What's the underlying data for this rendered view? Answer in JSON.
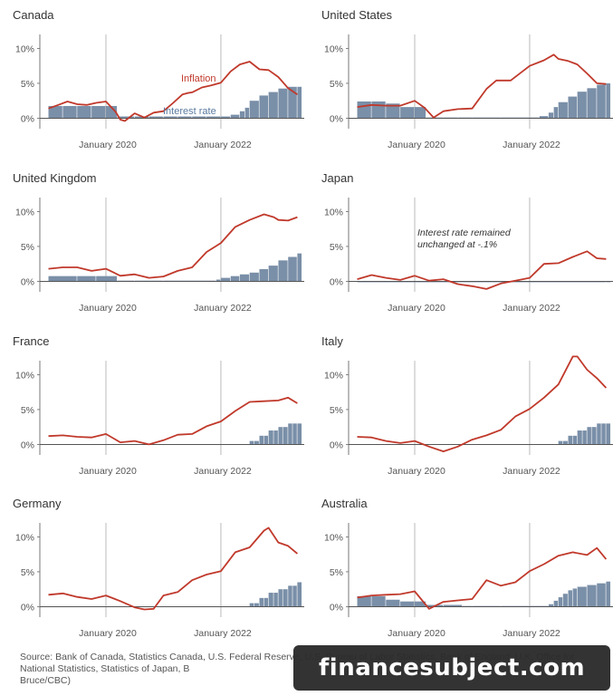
{
  "chart_data": [
    {
      "type": "line",
      "title": "Canada",
      "yticks": [
        "10%",
        "5%",
        "0%"
      ],
      "xticks": [
        "January 2020",
        "January 2022"
      ],
      "ylim": [
        -1.5,
        12
      ],
      "labels": {
        "inflation": "Inflation",
        "interest": "Interest rate"
      },
      "series": [
        {
          "name": "Inflation",
          "kind": "line",
          "color": "#c0392b",
          "x": [
            2019.0,
            2019.17,
            2019.33,
            2019.5,
            2019.67,
            2019.83,
            2020.0,
            2020.17,
            2020.25,
            2020.33,
            2020.5,
            2020.67,
            2020.83,
            2021.0,
            2021.17,
            2021.33,
            2021.42,
            2021.5,
            2021.67,
            2021.83,
            2022.0,
            2022.17,
            2022.33,
            2022.5,
            2022.67,
            2022.83,
            2023.0,
            2023.17,
            2023.33
          ],
          "values": [
            1.4,
            1.9,
            2.4,
            2.0,
            1.9,
            2.2,
            2.4,
            0.9,
            -0.2,
            -0.4,
            0.7,
            0.1,
            0.8,
            1.0,
            2.2,
            3.4,
            3.6,
            3.7,
            4.4,
            4.7,
            5.1,
            6.7,
            7.7,
            8.1,
            7.0,
            6.9,
            5.9,
            4.3,
            3.4
          ]
        },
        {
          "name": "Interest rate",
          "kind": "bar",
          "color": "#7a8fa8",
          "x": [
            2019.0,
            2019.25,
            2019.5,
            2019.75,
            2020.0,
            2020.2,
            2020.5,
            2020.75,
            2021.0,
            2021.25,
            2021.5,
            2021.75,
            2022.0,
            2022.17,
            2022.33,
            2022.42,
            2022.5,
            2022.67,
            2022.83,
            2023.0,
            2023.17,
            2023.33
          ],
          "values": [
            1.75,
            1.75,
            1.75,
            1.75,
            1.75,
            0.25,
            0.25,
            0.25,
            0.25,
            0.25,
            0.25,
            0.25,
            0.25,
            0.5,
            1.0,
            1.5,
            2.5,
            3.25,
            3.75,
            4.25,
            4.5,
            4.5
          ]
        }
      ]
    },
    {
      "type": "line",
      "title": "United States",
      "yticks": [
        "10%",
        "5%",
        "0%"
      ],
      "xticks": [
        "January 2020",
        "January 2022"
      ],
      "ylim": [
        -1.5,
        12
      ],
      "series": [
        {
          "name": "Inflation",
          "kind": "line",
          "color": "#c0392b",
          "x": [
            2019.0,
            2019.25,
            2019.5,
            2019.75,
            2020.0,
            2020.17,
            2020.33,
            2020.5,
            2020.75,
            2021.0,
            2021.25,
            2021.42,
            2021.67,
            2022.0,
            2022.25,
            2022.42,
            2022.5,
            2022.67,
            2022.83,
            2023.0,
            2023.17,
            2023.33
          ],
          "values": [
            1.6,
            1.9,
            1.8,
            1.8,
            2.5,
            1.5,
            0.1,
            1.0,
            1.3,
            1.4,
            4.2,
            5.4,
            5.4,
            7.5,
            8.3,
            9.1,
            8.5,
            8.2,
            7.7,
            6.4,
            5.0,
            4.9
          ]
        },
        {
          "name": "Interest rate",
          "kind": "bar",
          "color": "#7a8fa8",
          "x": [
            2019.0,
            2019.25,
            2019.5,
            2019.75,
            2020.0,
            2020.2,
            2020.5,
            2020.75,
            2021.0,
            2021.5,
            2022.0,
            2022.17,
            2022.33,
            2022.42,
            2022.5,
            2022.67,
            2022.83,
            2023.0,
            2023.17,
            2023.33
          ],
          "values": [
            2.4,
            2.4,
            2.1,
            1.6,
            1.6,
            0.1,
            0.1,
            0.1,
            0.1,
            0.1,
            0.1,
            0.3,
            0.8,
            1.6,
            2.3,
            3.1,
            3.8,
            4.3,
            4.8,
            5.0
          ]
        }
      ]
    },
    {
      "type": "line",
      "title": "United Kingdom",
      "yticks": [
        "10%",
        "5%",
        "0%"
      ],
      "xticks": [
        "January 2020",
        "January 2022"
      ],
      "ylim": [
        -1.5,
        12
      ],
      "series": [
        {
          "name": "Inflation",
          "kind": "line",
          "color": "#c0392b",
          "x": [
            2019.0,
            2019.25,
            2019.5,
            2019.75,
            2020.0,
            2020.25,
            2020.5,
            2020.75,
            2021.0,
            2021.25,
            2021.5,
            2021.75,
            2022.0,
            2022.25,
            2022.5,
            2022.75,
            2022.92,
            2023.0,
            2023.17,
            2023.33
          ],
          "values": [
            1.8,
            2.0,
            2.0,
            1.5,
            1.8,
            0.8,
            1.0,
            0.5,
            0.7,
            1.5,
            2.0,
            4.2,
            5.5,
            7.8,
            8.8,
            9.6,
            9.2,
            8.8,
            8.7,
            9.2
          ]
        },
        {
          "name": "Interest rate",
          "kind": "bar",
          "color": "#7a8fa8",
          "x": [
            2019.0,
            2019.5,
            2019.83,
            2020.2,
            2020.5,
            2021.0,
            2021.92,
            2022.0,
            2022.17,
            2022.33,
            2022.5,
            2022.67,
            2022.83,
            2023.0,
            2023.17,
            2023.33
          ],
          "values": [
            0.75,
            0.75,
            0.75,
            0.1,
            0.1,
            0.1,
            0.25,
            0.5,
            0.75,
            1.0,
            1.25,
            1.75,
            2.25,
            3.0,
            3.5,
            4.0
          ]
        }
      ]
    },
    {
      "type": "line",
      "title": "Japan",
      "yticks": [
        "10%",
        "5%",
        "0%"
      ],
      "xticks": [
        "January 2020",
        "January 2022"
      ],
      "ylim": [
        -1.5,
        12
      ],
      "annotation": "Interest rate remained unchanged at -.1%",
      "series": [
        {
          "name": "Inflation",
          "kind": "line",
          "color": "#c0392b",
          "x": [
            2019.0,
            2019.25,
            2019.5,
            2019.75,
            2020.0,
            2020.25,
            2020.5,
            2020.75,
            2021.0,
            2021.25,
            2021.5,
            2021.75,
            2022.0,
            2022.25,
            2022.5,
            2022.75,
            2023.0,
            2023.17,
            2023.33
          ],
          "values": [
            0.3,
            0.9,
            0.5,
            0.2,
            0.8,
            0.1,
            0.3,
            -0.4,
            -0.7,
            -1.1,
            -0.3,
            0.1,
            0.5,
            2.5,
            2.6,
            3.5,
            4.3,
            3.3,
            3.2
          ]
        },
        {
          "name": "Interest rate",
          "kind": "bar",
          "color": "#7a8fa8",
          "x": [
            2019.0,
            2023.33
          ],
          "values": [
            -0.1,
            -0.1
          ]
        }
      ]
    },
    {
      "type": "line",
      "title": "France",
      "yticks": [
        "10%",
        "5%",
        "0%"
      ],
      "xticks": [
        "January 2020",
        "January 2022"
      ],
      "ylim": [
        -1.5,
        12
      ],
      "series": [
        {
          "name": "Inflation",
          "kind": "line",
          "color": "#c0392b",
          "x": [
            2019.0,
            2019.25,
            2019.5,
            2019.75,
            2020.0,
            2020.25,
            2020.5,
            2020.75,
            2021.0,
            2021.25,
            2021.5,
            2021.75,
            2022.0,
            2022.25,
            2022.5,
            2022.75,
            2023.0,
            2023.17,
            2023.33
          ],
          "values": [
            1.2,
            1.3,
            1.1,
            1.0,
            1.5,
            0.3,
            0.5,
            0.0,
            0.6,
            1.4,
            1.5,
            2.6,
            3.3,
            4.8,
            6.1,
            6.2,
            6.3,
            6.7,
            5.9
          ]
        },
        {
          "name": "Interest rate",
          "kind": "bar",
          "color": "#7a8fa8",
          "x": [
            2022.5,
            2022.58,
            2022.67,
            2022.75,
            2022.83,
            2022.92,
            2023.0,
            2023.08,
            2023.17,
            2023.25,
            2023.33
          ],
          "values": [
            0.5,
            0.5,
            1.25,
            1.25,
            2.0,
            2.0,
            2.5,
            2.5,
            3.0,
            3.0,
            3.0
          ]
        }
      ]
    },
    {
      "type": "line",
      "title": "Italy",
      "yticks": [
        "10%",
        "5%",
        "0%"
      ],
      "xticks": [
        "January 2020",
        "January 2022"
      ],
      "ylim": [
        -1.5,
        12
      ],
      "series": [
        {
          "name": "Inflation",
          "kind": "line",
          "color": "#c0392b",
          "x": [
            2019.0,
            2019.25,
            2019.5,
            2019.75,
            2020.0,
            2020.25,
            2020.5,
            2020.75,
            2021.0,
            2021.25,
            2021.5,
            2021.75,
            2022.0,
            2022.25,
            2022.5,
            2022.75,
            2022.83,
            2023.0,
            2023.17,
            2023.33
          ],
          "values": [
            1.1,
            1.0,
            0.5,
            0.2,
            0.5,
            -0.3,
            -1.0,
            -0.3,
            0.7,
            1.3,
            2.1,
            4.0,
            5.1,
            6.7,
            8.6,
            12.6,
            12.6,
            10.7,
            9.5,
            8.1
          ]
        },
        {
          "name": "Interest rate",
          "kind": "bar",
          "color": "#7a8fa8",
          "x": [
            2022.5,
            2022.58,
            2022.67,
            2022.75,
            2022.83,
            2022.92,
            2023.0,
            2023.08,
            2023.17,
            2023.25,
            2023.33
          ],
          "values": [
            0.5,
            0.5,
            1.25,
            1.25,
            2.0,
            2.0,
            2.5,
            2.5,
            3.0,
            3.0,
            3.0
          ]
        }
      ]
    },
    {
      "type": "line",
      "title": "Germany",
      "yticks": [
        "10%",
        "5%",
        "0%"
      ],
      "xticks": [
        "January 2020",
        "January 2022"
      ],
      "ylim": [
        -1.5,
        12
      ],
      "series": [
        {
          "name": "Inflation",
          "kind": "line",
          "color": "#c0392b",
          "x": [
            2019.0,
            2019.25,
            2019.5,
            2019.75,
            2020.0,
            2020.25,
            2020.5,
            2020.67,
            2020.83,
            2021.0,
            2021.25,
            2021.5,
            2021.75,
            2022.0,
            2022.25,
            2022.5,
            2022.75,
            2022.83,
            2023.0,
            2023.17,
            2023.33
          ],
          "values": [
            1.7,
            1.9,
            1.4,
            1.1,
            1.6,
            0.8,
            -0.1,
            -0.4,
            -0.3,
            1.6,
            2.1,
            3.8,
            4.6,
            5.1,
            7.8,
            8.5,
            10.9,
            11.3,
            9.2,
            8.7,
            7.6
          ]
        },
        {
          "name": "Interest rate",
          "kind": "bar",
          "color": "#7a8fa8",
          "x": [
            2022.5,
            2022.58,
            2022.67,
            2022.75,
            2022.83,
            2022.92,
            2023.0,
            2023.08,
            2023.17,
            2023.25,
            2023.33
          ],
          "values": [
            0.5,
            0.5,
            1.25,
            1.25,
            2.0,
            2.0,
            2.5,
            2.5,
            3.0,
            3.0,
            3.5
          ]
        }
      ]
    },
    {
      "type": "line",
      "title": "Australia",
      "yticks": [
        "10%",
        "5%",
        "0%"
      ],
      "xticks": [
        "January 2020",
        "January 2022"
      ],
      "ylim": [
        -1.5,
        12
      ],
      "series": [
        {
          "name": "Inflation",
          "kind": "line",
          "color": "#c0392b",
          "x": [
            2019.0,
            2019.25,
            2019.5,
            2019.75,
            2020.0,
            2020.25,
            2020.5,
            2020.75,
            2021.0,
            2021.25,
            2021.5,
            2021.75,
            2022.0,
            2022.25,
            2022.5,
            2022.75,
            2023.0,
            2023.17,
            2023.33
          ],
          "values": [
            1.3,
            1.6,
            1.7,
            1.8,
            2.2,
            -0.3,
            0.7,
            0.9,
            1.1,
            3.8,
            3.0,
            3.5,
            5.1,
            6.1,
            7.3,
            7.8,
            7.4,
            8.4,
            6.8
          ]
        },
        {
          "name": "Interest rate",
          "kind": "bar",
          "color": "#7a8fa8",
          "x": [
            2019.0,
            2019.25,
            2019.5,
            2019.75,
            2020.0,
            2020.2,
            2020.5,
            2020.83,
            2021.0,
            2021.5,
            2022.0,
            2022.33,
            2022.42,
            2022.5,
            2022.58,
            2022.67,
            2022.75,
            2022.83,
            2023.0,
            2023.17,
            2023.33
          ],
          "values": [
            1.5,
            1.5,
            1.0,
            0.75,
            0.75,
            0.25,
            0.25,
            0.1,
            0.1,
            0.1,
            0.1,
            0.35,
            0.85,
            1.35,
            1.85,
            2.35,
            2.6,
            2.85,
            3.1,
            3.35,
            3.6
          ]
        }
      ]
    }
  ],
  "footer": {
    "source": "Source: Bank of Canada, Statistics Canada, U.S. Federal Reserve, U.S. Bureau of Labor Statistics, Bank of England, U.K. Office for National Statistics, Statistics of Japan, B",
    "source_end": "Bruce/CBC)"
  },
  "watermark": "financesubject.com"
}
